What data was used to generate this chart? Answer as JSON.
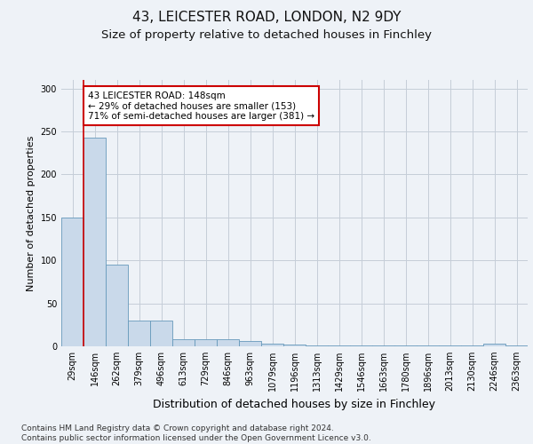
{
  "title1": "43, LEICESTER ROAD, LONDON, N2 9DY",
  "title2": "Size of property relative to detached houses in Finchley",
  "xlabel": "Distribution of detached houses by size in Finchley",
  "ylabel": "Number of detached properties",
  "categories": [
    "29sqm",
    "146sqm",
    "262sqm",
    "379sqm",
    "496sqm",
    "613sqm",
    "729sqm",
    "846sqm",
    "963sqm",
    "1079sqm",
    "1196sqm",
    "1313sqm",
    "1429sqm",
    "1546sqm",
    "1663sqm",
    "1780sqm",
    "1896sqm",
    "2013sqm",
    "2130sqm",
    "2246sqm",
    "2363sqm"
  ],
  "values": [
    150,
    243,
    95,
    30,
    30,
    8,
    8,
    8,
    6,
    3,
    2,
    1,
    1,
    1,
    1,
    1,
    1,
    1,
    1,
    3,
    1
  ],
  "bar_color": "#c9d9ea",
  "bar_edge_color": "#6699bb",
  "annotation_line_color": "#cc0000",
  "annotation_text": "43 LEICESTER ROAD: 148sqm\n← 29% of detached houses are smaller (153)\n71% of semi-detached houses are larger (381) →",
  "annotation_box_facecolor": "white",
  "annotation_box_edgecolor": "#cc0000",
  "footnote": "Contains HM Land Registry data © Crown copyright and database right 2024.\nContains public sector information licensed under the Open Government Licence v3.0.",
  "ylim": [
    0,
    310
  ],
  "yticks": [
    0,
    50,
    100,
    150,
    200,
    250,
    300
  ],
  "bg_color": "#eef2f7",
  "plot_bg_color": "#eef2f7",
  "title1_fontsize": 11,
  "title2_fontsize": 9.5,
  "xlabel_fontsize": 9,
  "ylabel_fontsize": 8,
  "tick_fontsize": 7,
  "annotation_fontsize": 7.5,
  "footnote_fontsize": 6.5,
  "grid_color": "#c5cdd8"
}
